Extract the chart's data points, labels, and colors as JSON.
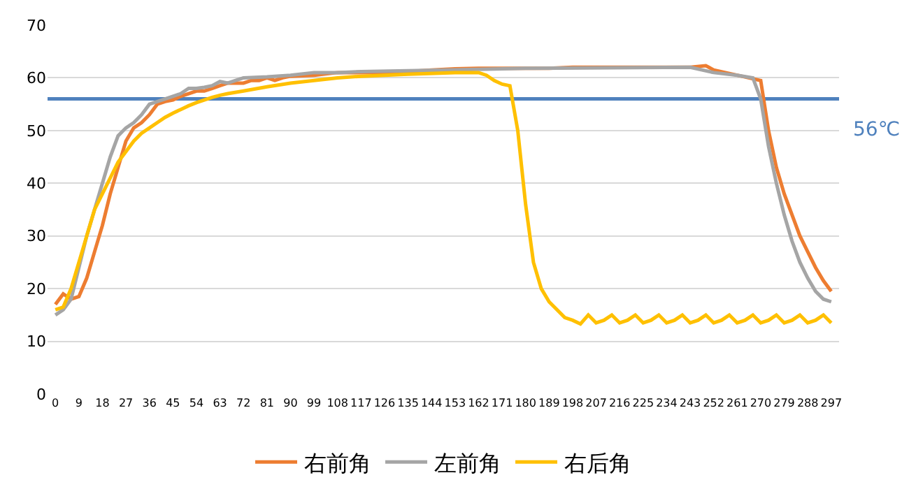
{
  "chart_data": {
    "type": "line",
    "xlim": [
      -3,
      300
    ],
    "xticks": [
      0,
      9,
      18,
      27,
      36,
      45,
      54,
      63,
      72,
      81,
      90,
      99,
      108,
      117,
      126,
      135,
      144,
      153,
      162,
      171,
      180,
      189,
      198,
      207,
      216,
      225,
      234,
      243,
      252,
      261,
      270,
      279,
      288,
      297
    ],
    "ylim": [
      0,
      70
    ],
    "yticks": [
      0,
      10,
      20,
      30,
      40,
      50,
      60,
      70
    ],
    "grid": "y",
    "legend": "bottom",
    "marker": "none",
    "line_style": "solid",
    "series": [
      {
        "name": "右前角",
        "color": "#ed7d31",
        "x": [
          0,
          3,
          6,
          9,
          12,
          15,
          18,
          21,
          24,
          27,
          30,
          33,
          36,
          39,
          42,
          45,
          48,
          51,
          54,
          57,
          60,
          63,
          66,
          69,
          72,
          75,
          78,
          81,
          84,
          87,
          90,
          99,
          108,
          117,
          126,
          135,
          144,
          153,
          162,
          171,
          180,
          189,
          198,
          207,
          216,
          225,
          234,
          243,
          249,
          252,
          261,
          270,
          273,
          276,
          279,
          282,
          285,
          288,
          291,
          294,
          297
        ],
        "values": [
          17,
          19,
          18,
          18.5,
          22,
          27,
          32,
          38,
          43,
          48,
          50.5,
          51.5,
          53,
          55,
          55.5,
          55.8,
          56.5,
          57,
          57.5,
          57.5,
          58,
          58.5,
          59,
          59,
          59,
          59.5,
          59.5,
          60,
          59.5,
          60,
          60.3,
          60.5,
          61,
          61,
          61,
          61.2,
          61.5,
          61.7,
          61.8,
          61.8,
          61.8,
          61.8,
          62,
          62,
          62,
          62,
          62,
          62,
          62.3,
          61.5,
          60.5,
          59.5,
          50,
          43,
          38,
          34,
          30,
          27,
          24,
          21.5,
          19.5
        ]
      },
      {
        "name": "左前角",
        "color": "#a5a5a5",
        "x": [
          0,
          3,
          6,
          9,
          12,
          15,
          18,
          21,
          24,
          27,
          30,
          33,
          36,
          39,
          42,
          45,
          48,
          51,
          54,
          57,
          60,
          63,
          66,
          69,
          72,
          81,
          90,
          99,
          108,
          117,
          153,
          180,
          243,
          252,
          261,
          267,
          270,
          273,
          276,
          279,
          282,
          285,
          288,
          291,
          294,
          297
        ],
        "values": [
          15,
          16,
          18,
          24,
          30,
          35,
          40,
          45,
          49,
          50.5,
          51.5,
          53,
          55,
          55.5,
          56,
          56.5,
          57,
          58,
          58,
          58.2,
          58.5,
          59.3,
          59,
          59.5,
          60,
          60.2,
          60.5,
          61,
          61,
          61.2,
          61.5,
          61.8,
          62,
          61,
          60.5,
          60,
          56,
          47,
          40,
          34,
          29,
          25,
          22,
          19.5,
          18,
          17.5
        ]
      },
      {
        "name": "右后角",
        "color": "#ffc000",
        "x": [
          0,
          3,
          6,
          9,
          12,
          15,
          18,
          21,
          24,
          27,
          30,
          33,
          36,
          39,
          42,
          45,
          48,
          51,
          54,
          57,
          60,
          63,
          66,
          72,
          81,
          90,
          99,
          108,
          117,
          135,
          153,
          162,
          165,
          168,
          171,
          174,
          177,
          180,
          183,
          186,
          189,
          192,
          195,
          198,
          201,
          204,
          207,
          210,
          213,
          216,
          219,
          222,
          225,
          228,
          231,
          234,
          237,
          240,
          243,
          246,
          249,
          252,
          255,
          258,
          261,
          264,
          267,
          270,
          273,
          276,
          279,
          282,
          285,
          288,
          291,
          294,
          297
        ],
        "values": [
          16,
          16.5,
          20,
          25,
          30,
          35,
          38,
          41,
          44,
          46,
          48,
          49.5,
          50.5,
          51.5,
          52.5,
          53.3,
          54,
          54.7,
          55.3,
          55.8,
          56.3,
          56.7,
          57,
          57.5,
          58.3,
          59,
          59.5,
          60,
          60.3,
          60.7,
          61,
          61,
          60.5,
          59.5,
          58.8,
          58.5,
          50,
          36,
          25,
          20,
          17.5,
          16,
          14.5,
          14,
          13.3,
          15,
          13.5,
          14,
          15,
          13.5,
          14,
          15,
          13.5,
          14,
          15,
          13.5,
          14,
          15,
          13.5,
          14,
          15,
          13.5,
          14,
          15,
          13.5,
          14,
          15,
          13.5,
          14,
          15,
          13.5,
          14,
          15,
          13.5,
          14,
          15,
          13.5
        ]
      }
    ],
    "ref_lines": [
      {
        "axis": "y",
        "value": 56,
        "label": "56℃",
        "color": "#4f81bd",
        "line_style": "solid"
      }
    ]
  }
}
